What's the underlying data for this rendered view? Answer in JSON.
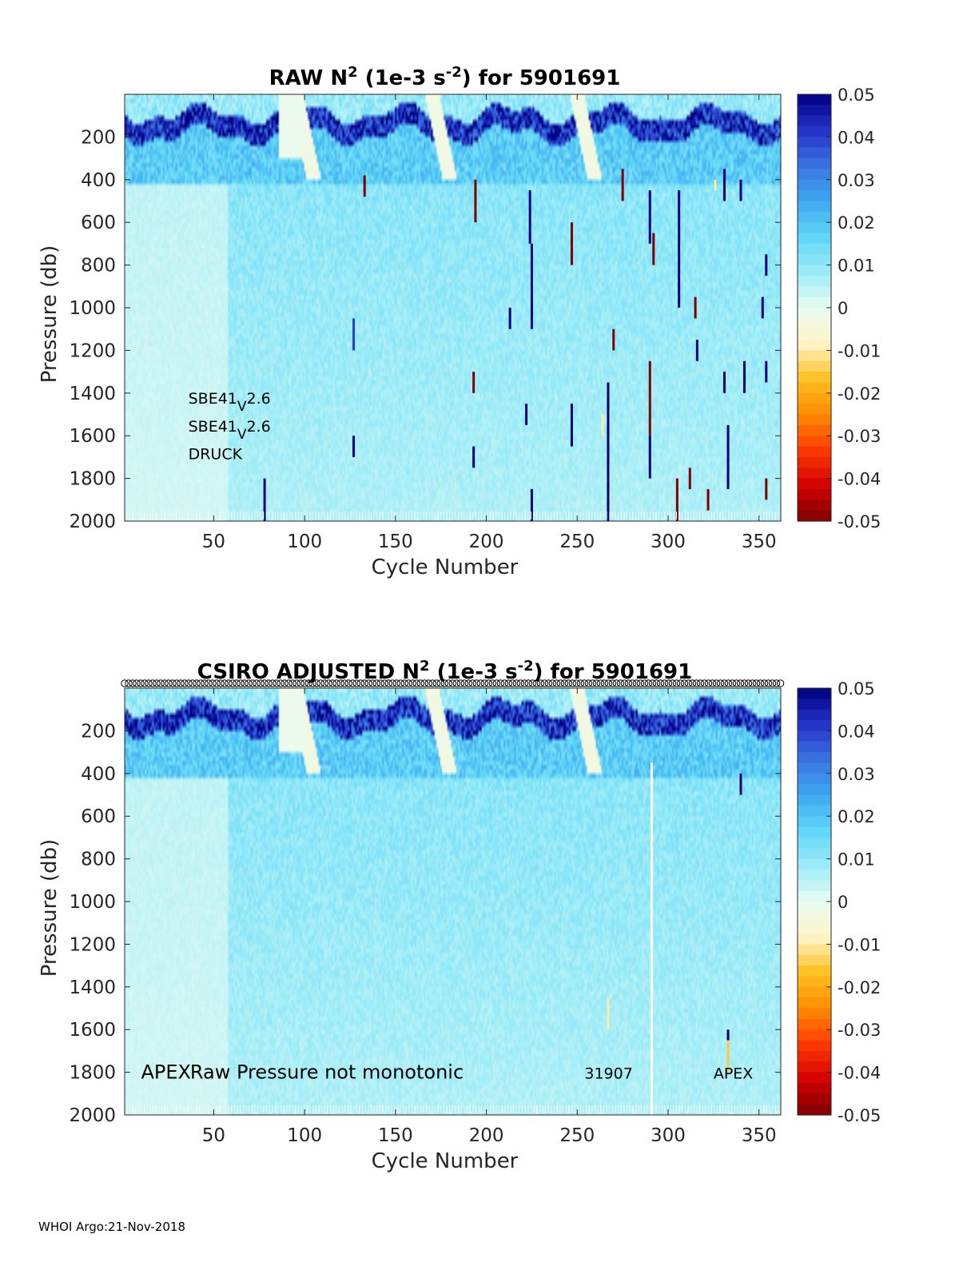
{
  "footer": "WHOI Argo:21-Nov-2018",
  "colors": {
    "colormap": [
      "#7f0000",
      "#d40000",
      "#ff3a00",
      "#ff8c00",
      "#ffc020",
      "#fff4c8",
      "#e9fbf2",
      "#9cecf8",
      "#5fd6f7",
      "#3ea8f0",
      "#3a72e0",
      "#2432c8",
      "#000080"
    ]
  },
  "chart_data": [
    {
      "type": "heatmap",
      "title_parts": [
        "RAW N",
        "2",
        " (1e-3 s",
        "-2",
        ") for 5901691"
      ],
      "xlabel": "Cycle Number",
      "ylabel": "Pressure (db)",
      "xlim": [
        1,
        362
      ],
      "ylim": [
        2000,
        0
      ],
      "xticks": [
        "50",
        "100",
        "150",
        "200",
        "250",
        "300",
        "350"
      ],
      "yticks": [
        "200",
        "400",
        "600",
        "800",
        "1000",
        "1200",
        "1400",
        "1600",
        "1800",
        "2000"
      ],
      "clim": [
        -0.05,
        0.05
      ],
      "cticks": [
        "0.05",
        "0.04",
        "0.03",
        "0.02",
        "0.01",
        "0",
        "-0.01",
        "-0.02",
        "-0.03",
        "-0.04",
        "-0.05"
      ],
      "annotations": [
        {
          "base": "SBE41",
          "sub": "V",
          "rest": "2.6"
        },
        {
          "base": "SBE41",
          "sub": "V",
          "rest": "2.6"
        },
        {
          "base": "DRUCK",
          "sub": "",
          "rest": ""
        }
      ],
      "spikes": [
        {
          "cycle": 78,
          "p0": 1800,
          "p1": 2000,
          "v": 0.05
        },
        {
          "cycle": 127,
          "p0": 1050,
          "p1": 1200,
          "v": 0.04
        },
        {
          "cycle": 127,
          "p0": 1600,
          "p1": 1700,
          "v": 0.05
        },
        {
          "cycle": 133,
          "p0": 380,
          "p1": 480,
          "v": -0.05
        },
        {
          "cycle": 193,
          "p0": 1300,
          "p1": 1400,
          "v": -0.05
        },
        {
          "cycle": 193,
          "p0": 1650,
          "p1": 1750,
          "v": 0.05
        },
        {
          "cycle": 194,
          "p0": 400,
          "p1": 600,
          "v": -0.05
        },
        {
          "cycle": 222,
          "p0": 1450,
          "p1": 1550,
          "v": 0.05
        },
        {
          "cycle": 224,
          "p0": 450,
          "p1": 700,
          "v": 0.05
        },
        {
          "cycle": 225,
          "p0": 700,
          "p1": 1100,
          "v": 0.05
        },
        {
          "cycle": 225,
          "p0": 1850,
          "p1": 2000,
          "v": 0.05
        },
        {
          "cycle": 213,
          "p0": 1000,
          "p1": 1100,
          "v": 0.05
        },
        {
          "cycle": 247,
          "p0": 600,
          "p1": 800,
          "v": -0.05
        },
        {
          "cycle": 247,
          "p0": 1450,
          "p1": 1650,
          "v": 0.05
        },
        {
          "cycle": 264,
          "p0": 1500,
          "p1": 1600,
          "v": -0.01
        },
        {
          "cycle": 267,
          "p0": 1350,
          "p1": 2000,
          "v": 0.05
        },
        {
          "cycle": 270,
          "p0": 1100,
          "p1": 1200,
          "v": -0.05
        },
        {
          "cycle": 275,
          "p0": 350,
          "p1": 500,
          "v": -0.05
        },
        {
          "cycle": 290,
          "p0": 450,
          "p1": 700,
          "v": 0.05
        },
        {
          "cycle": 290,
          "p0": 1250,
          "p1": 1600,
          "v": -0.05
        },
        {
          "cycle": 290,
          "p0": 1600,
          "p1": 1800,
          "v": 0.05
        },
        {
          "cycle": 292,
          "p0": 650,
          "p1": 800,
          "v": -0.05
        },
        {
          "cycle": 306,
          "p0": 450,
          "p1": 1000,
          "v": 0.05
        },
        {
          "cycle": 305,
          "p0": 1800,
          "p1": 2000,
          "v": -0.05
        },
        {
          "cycle": 312,
          "p0": 1750,
          "p1": 1850,
          "v": -0.05
        },
        {
          "cycle": 315,
          "p0": 950,
          "p1": 1050,
          "v": -0.05
        },
        {
          "cycle": 316,
          "p0": 1150,
          "p1": 1250,
          "v": 0.05
        },
        {
          "cycle": 322,
          "p0": 1850,
          "p1": 1950,
          "v": -0.05
        },
        {
          "cycle": 326,
          "p0": 400,
          "p1": 450,
          "v": -0.01
        },
        {
          "cycle": 331,
          "p0": 350,
          "p1": 500,
          "v": 0.05
        },
        {
          "cycle": 331,
          "p0": 1300,
          "p1": 1400,
          "v": 0.05
        },
        {
          "cycle": 333,
          "p0": 1550,
          "p1": 1850,
          "v": 0.05
        },
        {
          "cycle": 340,
          "p0": 400,
          "p1": 500,
          "v": 0.05
        },
        {
          "cycle": 342,
          "p0": 1250,
          "p1": 1400,
          "v": 0.05
        },
        {
          "cycle": 352,
          "p0": 950,
          "p1": 1050,
          "v": 0.05
        },
        {
          "cycle": 354,
          "p0": 750,
          "p1": 850,
          "v": 0.05
        },
        {
          "cycle": 354,
          "p0": 1250,
          "p1": 1350,
          "v": 0.05
        },
        {
          "cycle": 354,
          "p0": 1800,
          "p1": 1900,
          "v": -0.05
        }
      ]
    },
    {
      "type": "heatmap",
      "title_parts": [
        "CSIRO  ADJUSTED N",
        "2",
        " (1e-3 s",
        "-2",
        ") for 5901691"
      ],
      "xlabel": "Cycle Number",
      "ylabel": "Pressure (db)",
      "xlim": [
        1,
        362
      ],
      "ylim": [
        2000,
        0
      ],
      "xticks": [
        "50",
        "100",
        "150",
        "200",
        "250",
        "300",
        "350"
      ],
      "yticks": [
        "200",
        "400",
        "600",
        "800",
        "1000",
        "1200",
        "1400",
        "1600",
        "1800",
        "2000"
      ],
      "clim": [
        -0.05,
        0.05
      ],
      "cticks": [
        "0.05",
        "0.04",
        "0.03",
        "0.02",
        "0.01",
        "0",
        "-0.01",
        "-0.02",
        "-0.03",
        "-0.04",
        "-0.05"
      ],
      "annotations": [
        {
          "text": "APEX",
          "cycle": 10,
          "size": "big"
        },
        {
          "text": "Raw Pressure not monotonic",
          "cycle": 37,
          "size": "big"
        },
        {
          "text": "31907",
          "cycle": 254,
          "size": "small"
        },
        {
          "text": "APEX",
          "cycle": 325,
          "size": "small"
        }
      ],
      "spikes": [
        {
          "cycle": 267,
          "p0": 1450,
          "p1": 1600,
          "v": -0.01
        },
        {
          "cycle": 333,
          "p0": 1600,
          "p1": 1650,
          "v": 0.05
        },
        {
          "cycle": 333,
          "p0": 1650,
          "p1": 1800,
          "v": -0.015
        },
        {
          "cycle": 340,
          "p0": 400,
          "p1": 500,
          "v": 0.05
        }
      ],
      "gaps": [
        {
          "cycle": 291,
          "p0": 350,
          "p1": 2000
        }
      ]
    }
  ]
}
